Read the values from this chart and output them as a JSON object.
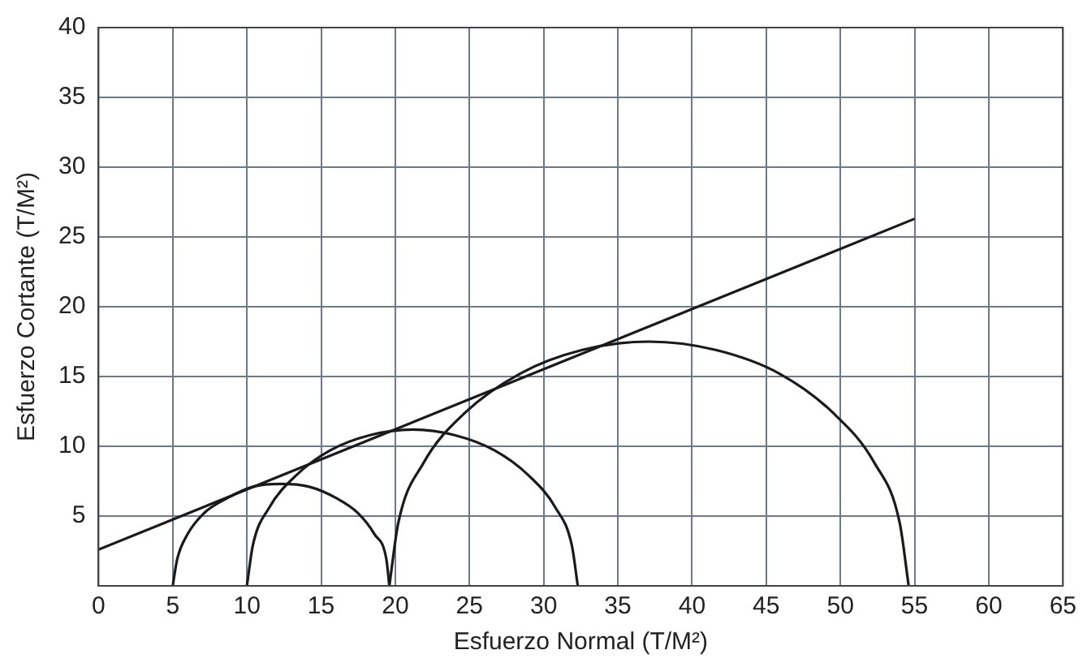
{
  "chart_data": {
    "type": "line",
    "xlabel": "Esfuerzo Normal (T/M²)",
    "ylabel": "Esfuerzo Cortante (T/M²)",
    "xlim": [
      0,
      65
    ],
    "ylim": [
      0,
      40
    ],
    "xticks": [
      0,
      5,
      10,
      15,
      20,
      25,
      30,
      35,
      40,
      45,
      50,
      55,
      60,
      65
    ],
    "yticks": [
      5,
      10,
      15,
      20,
      25,
      30,
      35,
      40
    ],
    "grid": true,
    "legend": false,
    "marker": "none",
    "line_style": "solid",
    "series": [
      {
        "color": "#1a1a1a",
        "x": [
          0,
          55
        ],
        "values": [
          2.6,
          26.3
        ]
      },
      {
        "color": "#1a1a1a",
        "x": [
          5.0,
          5.3,
          6.0,
          7.1,
          8.7,
          10.4,
          12.3,
          14.2,
          16.0,
          17.5,
          18.6,
          19.4,
          19.6
        ],
        "values": [
          0,
          1.9,
          3.7,
          5.2,
          6.3,
          7.1,
          7.3,
          7.1,
          6.3,
          5.2,
          3.7,
          1.9,
          0
        ]
      },
      {
        "color": "#1a1a1a",
        "x": [
          10.0,
          10.4,
          11.5,
          13.3,
          15.6,
          18.3,
          21.2,
          24.0,
          26.7,
          29.0,
          30.8,
          31.9,
          32.3
        ],
        "values": [
          0,
          2.9,
          5.6,
          7.9,
          9.7,
          10.8,
          11.2,
          10.8,
          9.7,
          7.9,
          5.6,
          2.9,
          0
        ]
      },
      {
        "color": "#1a1a1a",
        "x": [
          19.6,
          20.2,
          21.9,
          24.7,
          28.4,
          32.6,
          37.1,
          41.6,
          45.9,
          49.5,
          52.3,
          54.0,
          54.6
        ],
        "values": [
          0,
          4.5,
          8.8,
          12.4,
          15.2,
          16.9,
          17.5,
          16.9,
          15.2,
          12.4,
          8.8,
          4.5,
          0
        ]
      }
    ]
  }
}
